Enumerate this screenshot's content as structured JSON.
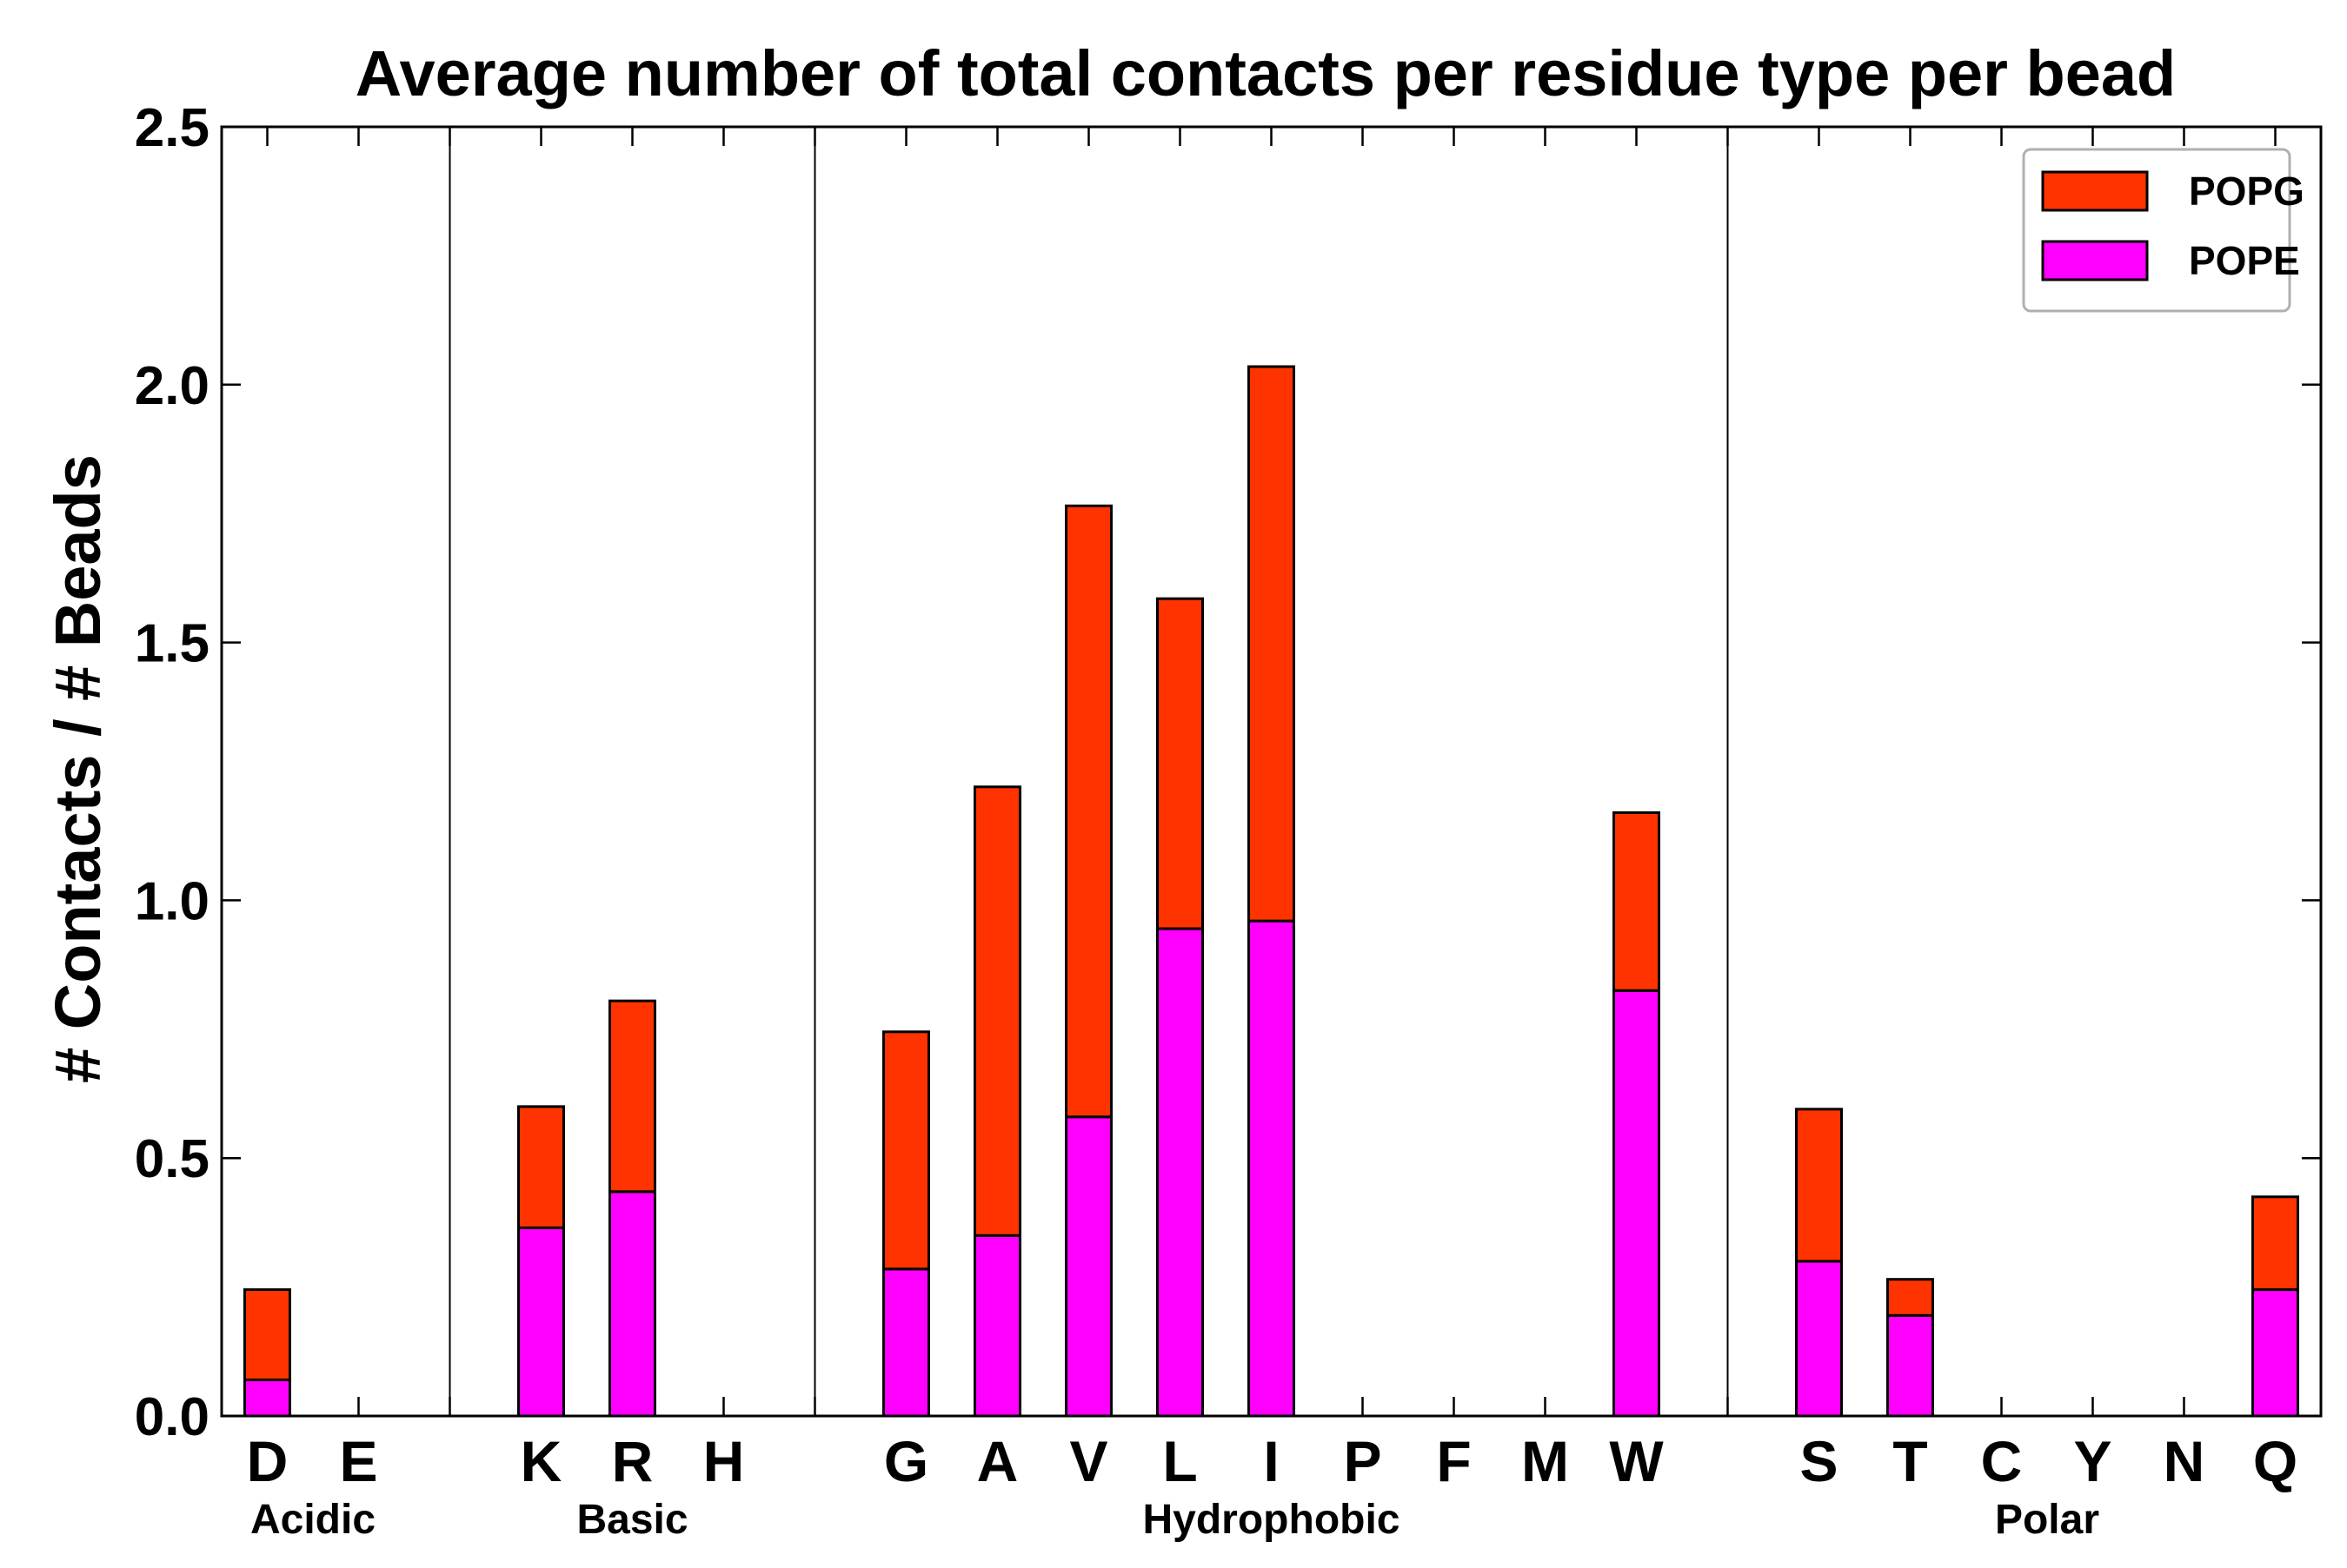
{
  "chart_data": {
    "type": "bar",
    "stacked": true,
    "title": "Average number of total contacts per residue type per bead",
    "xlabel": "",
    "ylabel": "# Contacts / # Beads",
    "ylim": [
      0,
      2.5
    ],
    "yticks": [
      "0.0",
      "0.5",
      "1.0",
      "1.5",
      "2.0",
      "2.5"
    ],
    "ytick_values": [
      0,
      0.5,
      1.0,
      1.5,
      2.0,
      2.5
    ],
    "categories": [
      "D",
      "E",
      "",
      "K",
      "R",
      "H",
      "",
      "G",
      "A",
      "V",
      "L",
      "I",
      "P",
      "F",
      "M",
      "W",
      "",
      "S",
      "T",
      "C",
      "Y",
      "N",
      "Q"
    ],
    "groups": [
      {
        "label": "Acidic",
        "categories": [
          "D",
          "E"
        ]
      },
      {
        "label": "Basic",
        "categories": [
          "K",
          "R",
          "H"
        ]
      },
      {
        "label": "Hydrophobic",
        "categories": [
          "G",
          "A",
          "V",
          "L",
          "I",
          "P",
          "F",
          "M",
          "W"
        ]
      },
      {
        "label": "Polar",
        "categories": [
          "S",
          "T",
          "C",
          "Y",
          "N",
          "Q"
        ]
      }
    ],
    "series": [
      {
        "name": "POPE",
        "color": "#ff00ff",
        "values": [
          0.07,
          0,
          0,
          0.365,
          0.435,
          0,
          0,
          0.285,
          0.35,
          0.58,
          0.945,
          0.96,
          0,
          0,
          0,
          0.825,
          0,
          0.3,
          0.195,
          0,
          0,
          0,
          0.245
        ]
      },
      {
        "name": "POPG",
        "color": "#ff3300",
        "values": [
          0.175,
          0,
          0,
          0.235,
          0.37,
          0,
          0,
          0.46,
          0.87,
          1.185,
          0.64,
          1.075,
          0,
          0,
          0,
          0.345,
          0,
          0.295,
          0.07,
          0,
          0,
          0,
          0.18
        ]
      }
    ],
    "legend": {
      "position": "top-right",
      "entries": [
        "POPG",
        "POPE"
      ]
    },
    "grid": false
  }
}
